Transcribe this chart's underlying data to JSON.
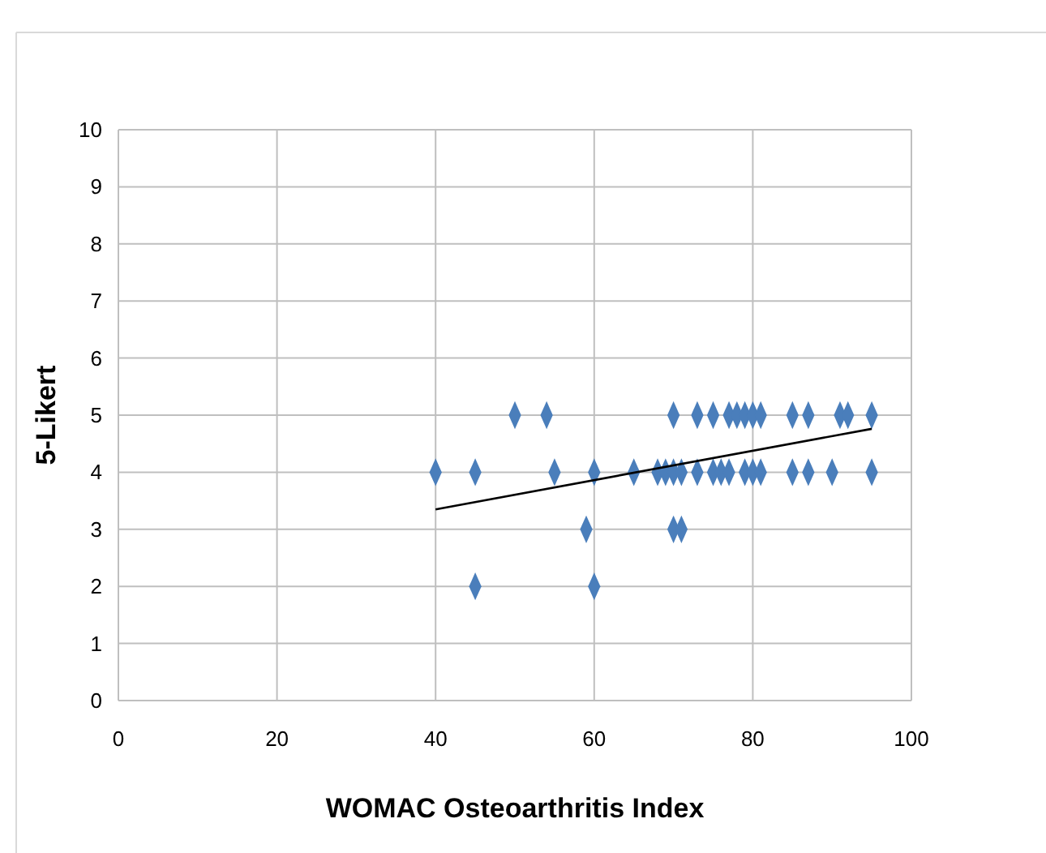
{
  "chart_data": {
    "type": "scatter",
    "xlabel": "WOMAC Osteoarthritis Index",
    "ylabel": "5-Likert",
    "xlim": [
      0,
      100
    ],
    "xticks": [
      0,
      20,
      40,
      60,
      80,
      100
    ],
    "ylim": [
      0,
      10
    ],
    "yticks": [
      0,
      1,
      2,
      3,
      4,
      5,
      6,
      7,
      8,
      9,
      10
    ],
    "grid": true,
    "series": [
      {
        "color": "#4a7ebb",
        "marker": "diamond",
        "x": [
          50,
          54,
          70,
          73,
          75,
          77,
          78,
          79,
          80,
          81,
          85,
          87,
          91,
          92,
          95,
          40,
          45,
          55,
          60,
          65,
          68,
          69,
          70,
          71,
          73,
          75,
          76,
          77,
          79,
          80,
          81,
          85,
          87,
          90,
          95,
          59,
          70,
          71,
          45,
          60
        ],
        "values": [
          5,
          5,
          5,
          5,
          5,
          5,
          5,
          5,
          5,
          5,
          5,
          5,
          5,
          5,
          5,
          4,
          4,
          4,
          4,
          4,
          4,
          4,
          4,
          4,
          4,
          4,
          4,
          4,
          4,
          4,
          4,
          4,
          4,
          4,
          4,
          3,
          3,
          3,
          2,
          2
        ]
      },
      {
        "type": "line",
        "color": "#000000",
        "marker": "none",
        "x": [
          40,
          95
        ],
        "values": [
          3.35,
          4.76
        ]
      }
    ]
  }
}
